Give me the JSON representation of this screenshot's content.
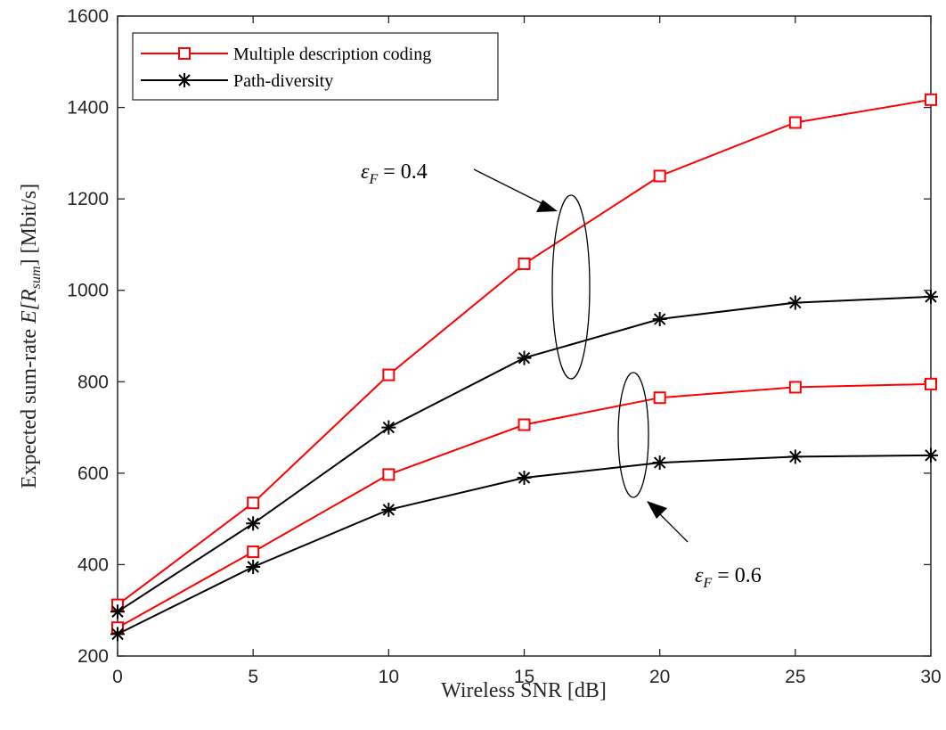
{
  "chart_data": {
    "type": "line",
    "title": "",
    "xlabel": "Wireless SNR [dB]",
    "ylabel_text": "Expected sum-rate ",
    "ylabel_math": "E[R",
    "ylabel_sub": "sum",
    "ylabel_close": "] [Mbit/s]",
    "xlim": [
      0,
      30
    ],
    "ylim": [
      200,
      1600
    ],
    "xticks": [
      0,
      5,
      10,
      15,
      20,
      25,
      30
    ],
    "yticks": [
      200,
      400,
      600,
      800,
      1000,
      1200,
      1400,
      1600
    ],
    "grid": false,
    "legend_position": "top-left",
    "legend": [
      {
        "label": "Multiple description coding",
        "color": "#ff0000",
        "marker": "square"
      },
      {
        "label": "Path-diversity",
        "color": "#000000",
        "marker": "asterisk"
      }
    ],
    "x": [
      0,
      5,
      10,
      15,
      20,
      25,
      30
    ],
    "series": [
      {
        "group": "eps_0.4",
        "method": "mdc",
        "color": "#ff0000",
        "marker": "square",
        "values": [
          312,
          535,
          815,
          1058,
          1250,
          1367,
          1417
        ]
      },
      {
        "group": "eps_0.4",
        "method": "path",
        "color": "#000000",
        "marker": "asterisk",
        "values": [
          297,
          490,
          700,
          852,
          937,
          973,
          986
        ]
      },
      {
        "group": "eps_0.6",
        "method": "mdc",
        "color": "#ff0000",
        "marker": "square",
        "values": [
          262,
          428,
          597,
          706,
          765,
          788,
          795
        ]
      },
      {
        "group": "eps_0.6",
        "method": "path",
        "color": "#000000",
        "marker": "asterisk",
        "values": [
          248,
          395,
          520,
          590,
          623,
          636,
          639
        ]
      }
    ],
    "annotations": [
      {
        "var": "ε",
        "sub": "F",
        "text": " = 0.4"
      },
      {
        "var": "ε",
        "sub": "F",
        "text": " = 0.6"
      }
    ]
  }
}
